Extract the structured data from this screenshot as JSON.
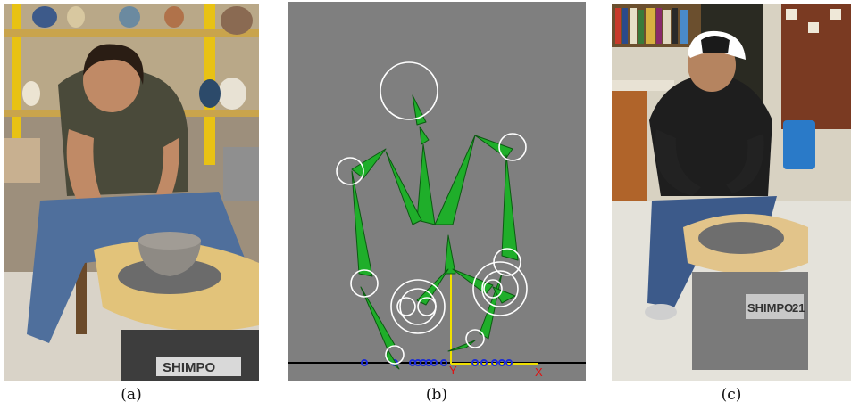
{
  "figure": {
    "panels": [
      {
        "id": "a",
        "caption": "(a)",
        "subject": "potter-at-wheel-photo"
      },
      {
        "id": "b",
        "caption": "(b)",
        "subject": "3d-skeleton-rig"
      },
      {
        "id": "c",
        "caption": "(c)",
        "subject": "potter-at-wheel-photo"
      }
    ],
    "wheel_brand": "SHIMPO",
    "wheel_model": "21",
    "axis_labels": {
      "y": "Y",
      "x": "X"
    },
    "colors": {
      "rig_background": "#7f7f7f",
      "bone_fill": "#1fae2a",
      "bone_stroke": "#0a5a10",
      "joint_circle": "#ffffff",
      "y_axis": "#f0e000",
      "axis_label": "#e01010",
      "markers": "#1b2bd8"
    }
  }
}
